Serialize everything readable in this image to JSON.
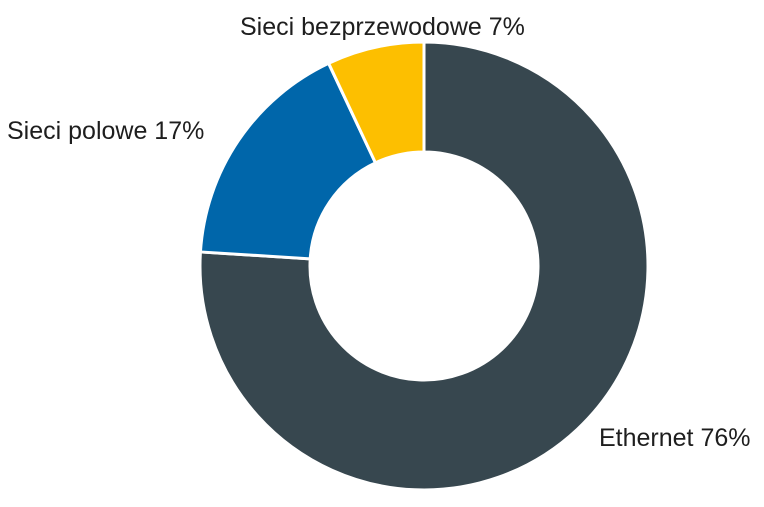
{
  "chart_data": {
    "type": "pie",
    "style": "donut",
    "title": "",
    "slices": [
      {
        "name": "Ethernet",
        "value": 76,
        "label": "Ethernet 76%",
        "color": "#37474f"
      },
      {
        "name": "Sieci polowe",
        "value": 17,
        "label": "Sieci polowe 17%",
        "color": "#0066aa"
      },
      {
        "name": "Sieci bezprzewodowe",
        "value": 7,
        "label": "Sieci bezprzewodowe 7%",
        "color": "#fdbf00"
      }
    ]
  }
}
